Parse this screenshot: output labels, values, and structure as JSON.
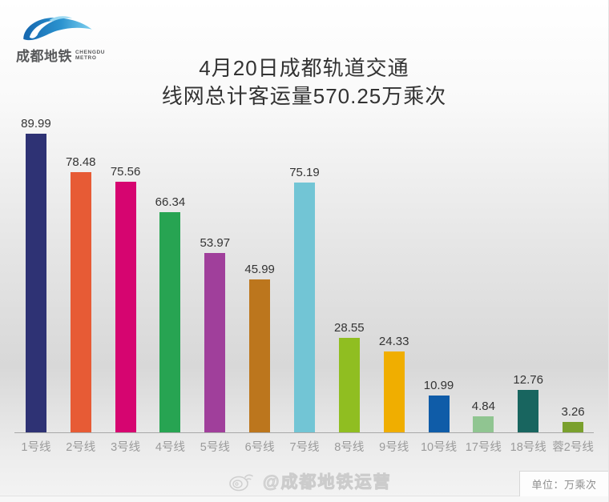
{
  "logo": {
    "cn": "成都地铁",
    "en_line1": "CHENGDU",
    "en_line2": "METRO",
    "brand_blue": "#1b79bd"
  },
  "chart_data": {
    "type": "bar",
    "title_line1": "4月20日成都轨道交通",
    "title_line2": "线网总计客运量570.25万乘次",
    "unit": "万乘次",
    "total": 570.25,
    "date": "4月20日",
    "categories": [
      "1号线",
      "2号线",
      "3号线",
      "4号线",
      "5号线",
      "6号线",
      "7号线",
      "8号线",
      "9号线",
      "10号线",
      "17号线",
      "18号线",
      "蓉2号线"
    ],
    "values": [
      89.99,
      78.48,
      75.56,
      66.34,
      53.97,
      45.99,
      75.19,
      28.55,
      24.33,
      10.99,
      4.84,
      12.76,
      3.26
    ],
    "colors": [
      "#2e3274",
      "#e75b35",
      "#d60570",
      "#27a452",
      "#a03f9b",
      "#bc761d",
      "#72c5d5",
      "#90be21",
      "#f0ae00",
      "#0f5ca8",
      "#90c591",
      "#18655f",
      "#7aa02d"
    ],
    "ylim": [
      0,
      95
    ],
    "grid": false,
    "value_labels": true,
    "legend": "none"
  },
  "watermark": {
    "text": "@成都地铁运营"
  },
  "unit_label": "单位：万乘次"
}
